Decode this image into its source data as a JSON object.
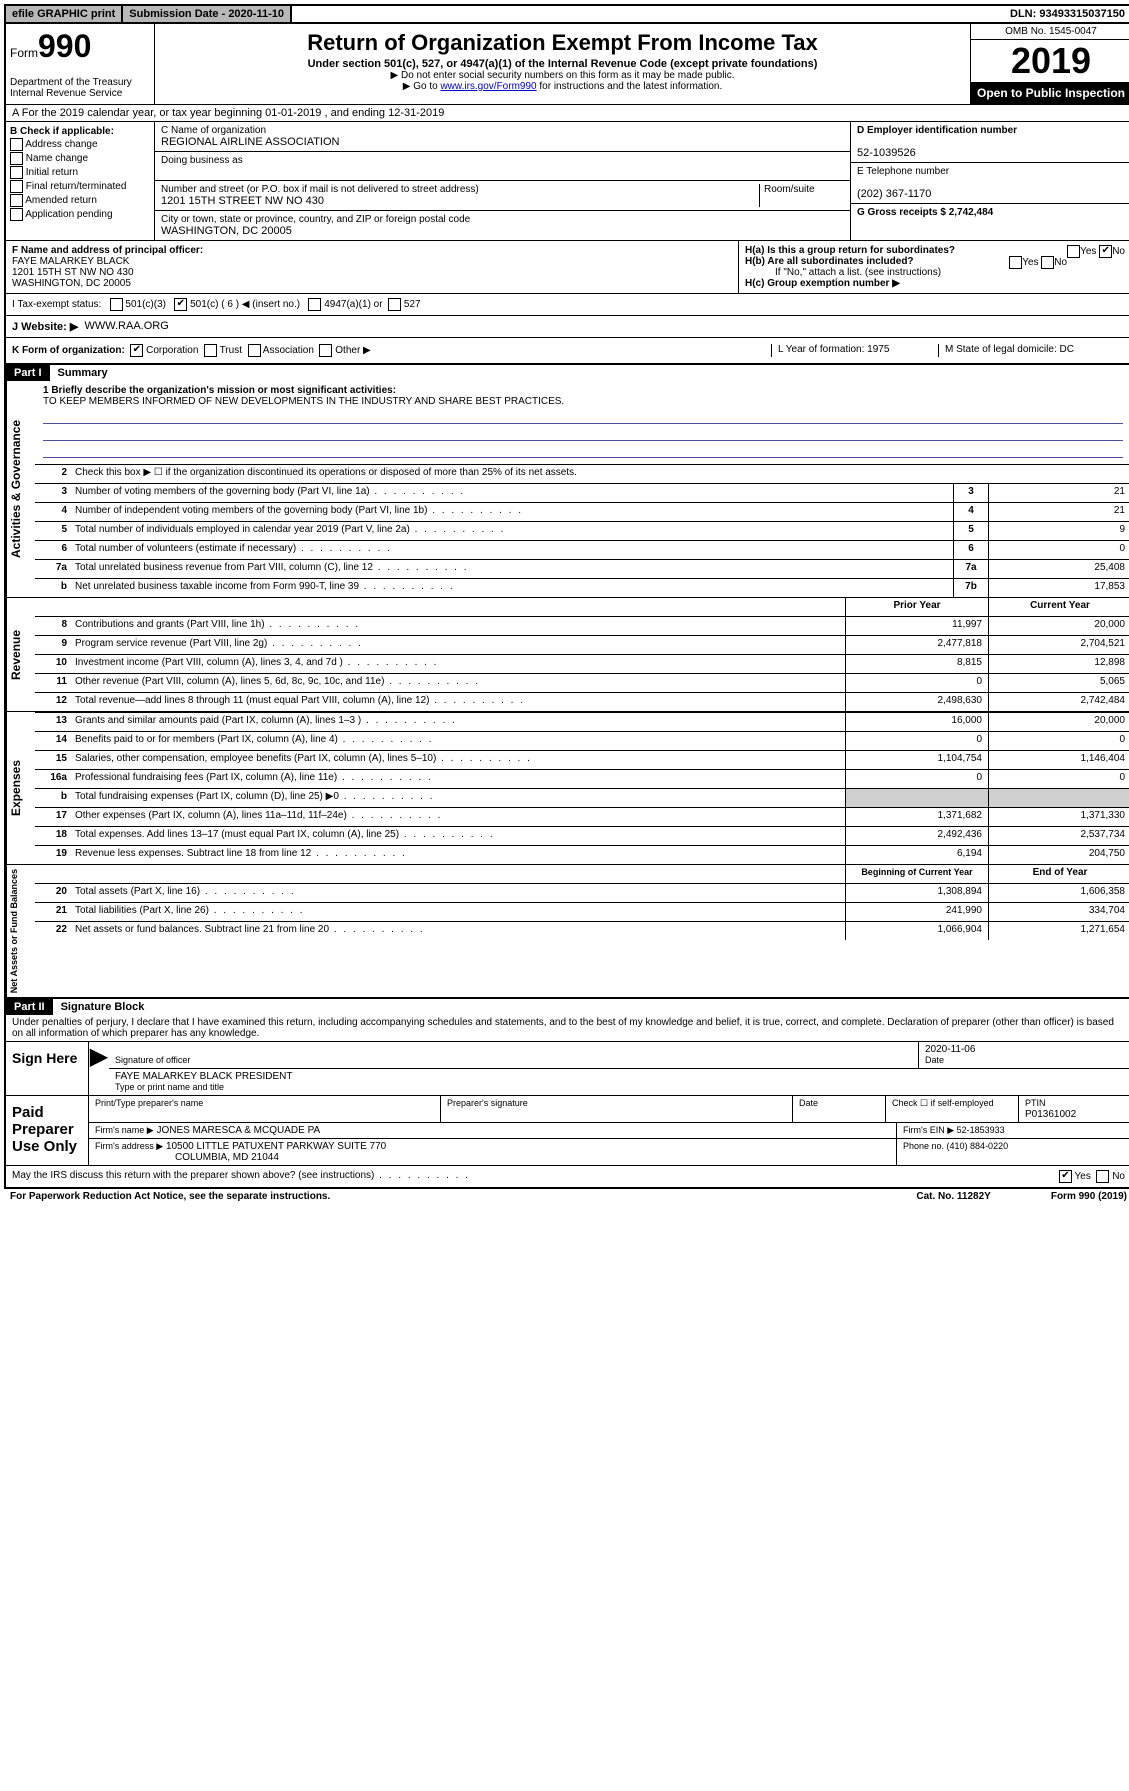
{
  "topbar": {
    "efile": "efile GRAPHIC print",
    "submission_label": "Submission Date - 2020-11-10",
    "dln_label": "DLN: 93493315037150"
  },
  "header": {
    "form_prefix": "Form",
    "form_number": "990",
    "dept": "Department of the Treasury",
    "irs": "Internal Revenue Service",
    "title": "Return of Organization Exempt From Income Tax",
    "subtitle": "Under section 501(c), 527, or 4947(a)(1) of the Internal Revenue Code (except private foundations)",
    "note1": "▶ Do not enter social security numbers on this form as it may be made public.",
    "note2_pre": "▶ Go to ",
    "note2_link": "www.irs.gov/Form990",
    "note2_post": " for instructions and the latest information.",
    "omb": "OMB No. 1545-0047",
    "year": "2019",
    "open_public": "Open to Public Inspection"
  },
  "line_a": "A For the 2019 calendar year, or tax year beginning 01-01-2019    , and ending 12-31-2019",
  "section_b": {
    "label": "B Check if applicable:",
    "opts": [
      "Address change",
      "Name change",
      "Initial return",
      "Final return/terminated",
      "Amended return",
      "Application pending"
    ]
  },
  "section_c": {
    "name_label": "C Name of organization",
    "name": "REGIONAL AIRLINE ASSOCIATION",
    "dba_label": "Doing business as",
    "addr_label": "Number and street (or P.O. box if mail is not delivered to street address)",
    "room_label": "Room/suite",
    "addr": "1201 15TH STREET NW NO 430",
    "city_label": "City or town, state or province, country, and ZIP or foreign postal code",
    "city": "WASHINGTON, DC  20005"
  },
  "section_de": {
    "d_label": "D Employer identification number",
    "d_val": "52-1039526",
    "e_label": "E Telephone number",
    "e_val": "(202) 367-1170",
    "g_label": "G Gross receipts $ 2,742,484"
  },
  "section_f": {
    "label": "F  Name and address of principal officer:",
    "name": "FAYE MALARKEY BLACK",
    "addr1": "1201 15TH ST NW NO 430",
    "addr2": "WASHINGTON, DC  20005"
  },
  "section_h": {
    "ha": "H(a)  Is this a group return for subordinates?",
    "hb": "H(b)  Are all subordinates included?",
    "hb_note": "If \"No,\" attach a list. (see instructions)",
    "hc": "H(c)  Group exemption number ▶",
    "yes": "Yes",
    "no": "No"
  },
  "row_i": {
    "label": "I    Tax-exempt status:",
    "o501c3": "501(c)(3)",
    "o501c": "501(c) ( 6 ) ◀ (insert no.)",
    "o4947": "4947(a)(1) or",
    "o527": "527"
  },
  "row_j": {
    "label": "J    Website: ▶",
    "val": "WWW.RAA.ORG"
  },
  "row_k": {
    "label": "K Form of organization:",
    "corp": "Corporation",
    "trust": "Trust",
    "assoc": "Association",
    "other": "Other ▶",
    "l_label": "L Year of formation: 1975",
    "m_label": "M State of legal domicile: DC"
  },
  "part1": {
    "header": "Part I",
    "title": "Summary",
    "q1_label": "1  Briefly describe the organization's mission or most significant activities:",
    "q1_val": "TO KEEP MEMBERS INFORMED OF NEW DEVELOPMENTS IN THE INDUSTRY AND SHARE BEST PRACTICES.",
    "q2": "Check this box ▶ ☐  if the organization discontinued its operations or disposed of more than 25% of its net assets.",
    "side_gov": "Activities & Governance",
    "side_rev": "Revenue",
    "side_exp": "Expenses",
    "side_net": "Net Assets or Fund Balances",
    "col_prior": "Prior Year",
    "col_current": "Current Year",
    "col_begin": "Beginning of Current Year",
    "col_end": "End of Year",
    "lines_gov": [
      {
        "n": "3",
        "d": "Number of voting members of the governing body (Part VI, line 1a)",
        "box": "3",
        "v": "21"
      },
      {
        "n": "4",
        "d": "Number of independent voting members of the governing body (Part VI, line 1b)",
        "box": "4",
        "v": "21"
      },
      {
        "n": "5",
        "d": "Total number of individuals employed in calendar year 2019 (Part V, line 2a)",
        "box": "5",
        "v": "9"
      },
      {
        "n": "6",
        "d": "Total number of volunteers (estimate if necessary)",
        "box": "6",
        "v": "0"
      },
      {
        "n": "7a",
        "d": "Total unrelated business revenue from Part VIII, column (C), line 12",
        "box": "7a",
        "v": "25,408"
      },
      {
        "n": "b",
        "d": "Net unrelated business taxable income from Form 990-T, line 39",
        "box": "7b",
        "v": "17,853"
      }
    ],
    "lines_rev": [
      {
        "n": "8",
        "d": "Contributions and grants (Part VIII, line 1h)",
        "p": "11,997",
        "c": "20,000"
      },
      {
        "n": "9",
        "d": "Program service revenue (Part VIII, line 2g)",
        "p": "2,477,818",
        "c": "2,704,521"
      },
      {
        "n": "10",
        "d": "Investment income (Part VIII, column (A), lines 3, 4, and 7d )",
        "p": "8,815",
        "c": "12,898"
      },
      {
        "n": "11",
        "d": "Other revenue (Part VIII, column (A), lines 5, 6d, 8c, 9c, 10c, and 11e)",
        "p": "0",
        "c": "5,065"
      },
      {
        "n": "12",
        "d": "Total revenue—add lines 8 through 11 (must equal Part VIII, column (A), line 12)",
        "p": "2,498,630",
        "c": "2,742,484"
      }
    ],
    "lines_exp": [
      {
        "n": "13",
        "d": "Grants and similar amounts paid (Part IX, column (A), lines 1–3 )",
        "p": "16,000",
        "c": "20,000"
      },
      {
        "n": "14",
        "d": "Benefits paid to or for members (Part IX, column (A), line 4)",
        "p": "0",
        "c": "0"
      },
      {
        "n": "15",
        "d": "Salaries, other compensation, employee benefits (Part IX, column (A), lines 5–10)",
        "p": "1,104,754",
        "c": "1,146,404"
      },
      {
        "n": "16a",
        "d": "Professional fundraising fees (Part IX, column (A), line 11e)",
        "p": "0",
        "c": "0"
      },
      {
        "n": "b",
        "d": "Total fundraising expenses (Part IX, column (D), line 25) ▶0",
        "p": "",
        "c": "",
        "shade": true
      },
      {
        "n": "17",
        "d": "Other expenses (Part IX, column (A), lines 11a–11d, 11f–24e)",
        "p": "1,371,682",
        "c": "1,371,330"
      },
      {
        "n": "18",
        "d": "Total expenses. Add lines 13–17 (must equal Part IX, column (A), line 25)",
        "p": "2,492,436",
        "c": "2,537,734"
      },
      {
        "n": "19",
        "d": "Revenue less expenses. Subtract line 18 from line 12",
        "p": "6,194",
        "c": "204,750"
      }
    ],
    "lines_net": [
      {
        "n": "20",
        "d": "Total assets (Part X, line 16)",
        "p": "1,308,894",
        "c": "1,606,358"
      },
      {
        "n": "21",
        "d": "Total liabilities (Part X, line 26)",
        "p": "241,990",
        "c": "334,704"
      },
      {
        "n": "22",
        "d": "Net assets or fund balances. Subtract line 21 from line 20",
        "p": "1,066,904",
        "c": "1,271,654"
      }
    ]
  },
  "part2": {
    "header": "Part II",
    "title": "Signature Block",
    "perjury": "Under penalties of perjury, I declare that I have examined this return, including accompanying schedules and statements, and to the best of my knowledge and belief, it is true, correct, and complete. Declaration of preparer (other than officer) is based on all information of which preparer has any knowledge.",
    "sign_here": "Sign Here",
    "sig_officer": "Signature of officer",
    "sig_date": "2020-11-06",
    "date_label": "Date",
    "officer_name": "FAYE MALARKEY BLACK  PRESIDENT",
    "type_name": "Type or print name and title",
    "paid_prep": "Paid Preparer Use Only",
    "prep_name_label": "Print/Type preparer's name",
    "prep_sig_label": "Preparer's signature",
    "prep_date_label": "Date",
    "check_self": "Check ☐ if self-employed",
    "ptin_label": "PTIN",
    "ptin": "P01361002",
    "firm_name_label": "Firm's name    ▶",
    "firm_name": "JONES MARESCA & MCQUADE PA",
    "firm_ein_label": "Firm's EIN ▶ 52-1853933",
    "firm_addr_label": "Firm's address ▶",
    "firm_addr": "10500 LITTLE PATUXENT PARKWAY SUITE 770",
    "firm_city": "COLUMBIA, MD  21044",
    "firm_phone": "Phone no. (410) 884-0220",
    "may_irs": "May the IRS discuss this return with the preparer shown above? (see instructions)",
    "footer_left": "For Paperwork Reduction Act Notice, see the separate instructions.",
    "footer_mid": "Cat. No. 11282Y",
    "footer_right": "Form 990 (2019)"
  }
}
